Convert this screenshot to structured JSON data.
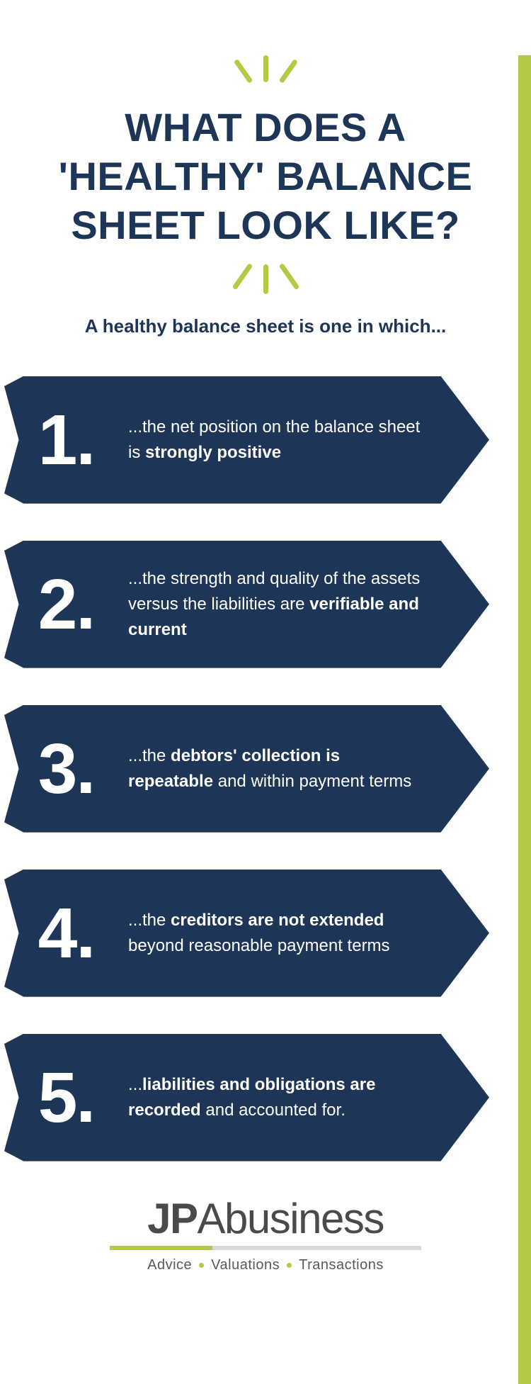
{
  "colors": {
    "navy": "#1d3556",
    "olive": "#b6c947",
    "side": "#b6c947",
    "logo_text": "#4a4a4a",
    "logo_line_left": "#b6c947",
    "logo_line_right": "#d9d9d9",
    "tagline_text": "#595959",
    "tagline_dot": "#b6c947"
  },
  "title": "WHAT DOES A 'HEALTHY' BALANCE SHEET LOOK LIKE?",
  "subtitle": "A healthy balance sheet is one in which...",
  "items": [
    {
      "num": "1.",
      "html": "...the net position on the balance sheet is <b>strongly positive</b>"
    },
    {
      "num": "2.",
      "html": "...the strength and quality of the assets versus the liabilities are <b>verifiable and current</b>"
    },
    {
      "num": "3.",
      "html": "...the <b>debtors' collection is repeatable</b> and within payment terms"
    },
    {
      "num": "4.",
      "html": "...the <b>creditors are not extended</b> beyond reasonable payment terms"
    },
    {
      "num": "5.",
      "html": "...<b>liabilities and obligations are recorded</b> and accounted for."
    }
  ],
  "logo": {
    "part1": "JP",
    "part2": "A",
    "part3": "business",
    "tagline": [
      "Advice",
      "Valuations",
      "Transactions"
    ]
  }
}
